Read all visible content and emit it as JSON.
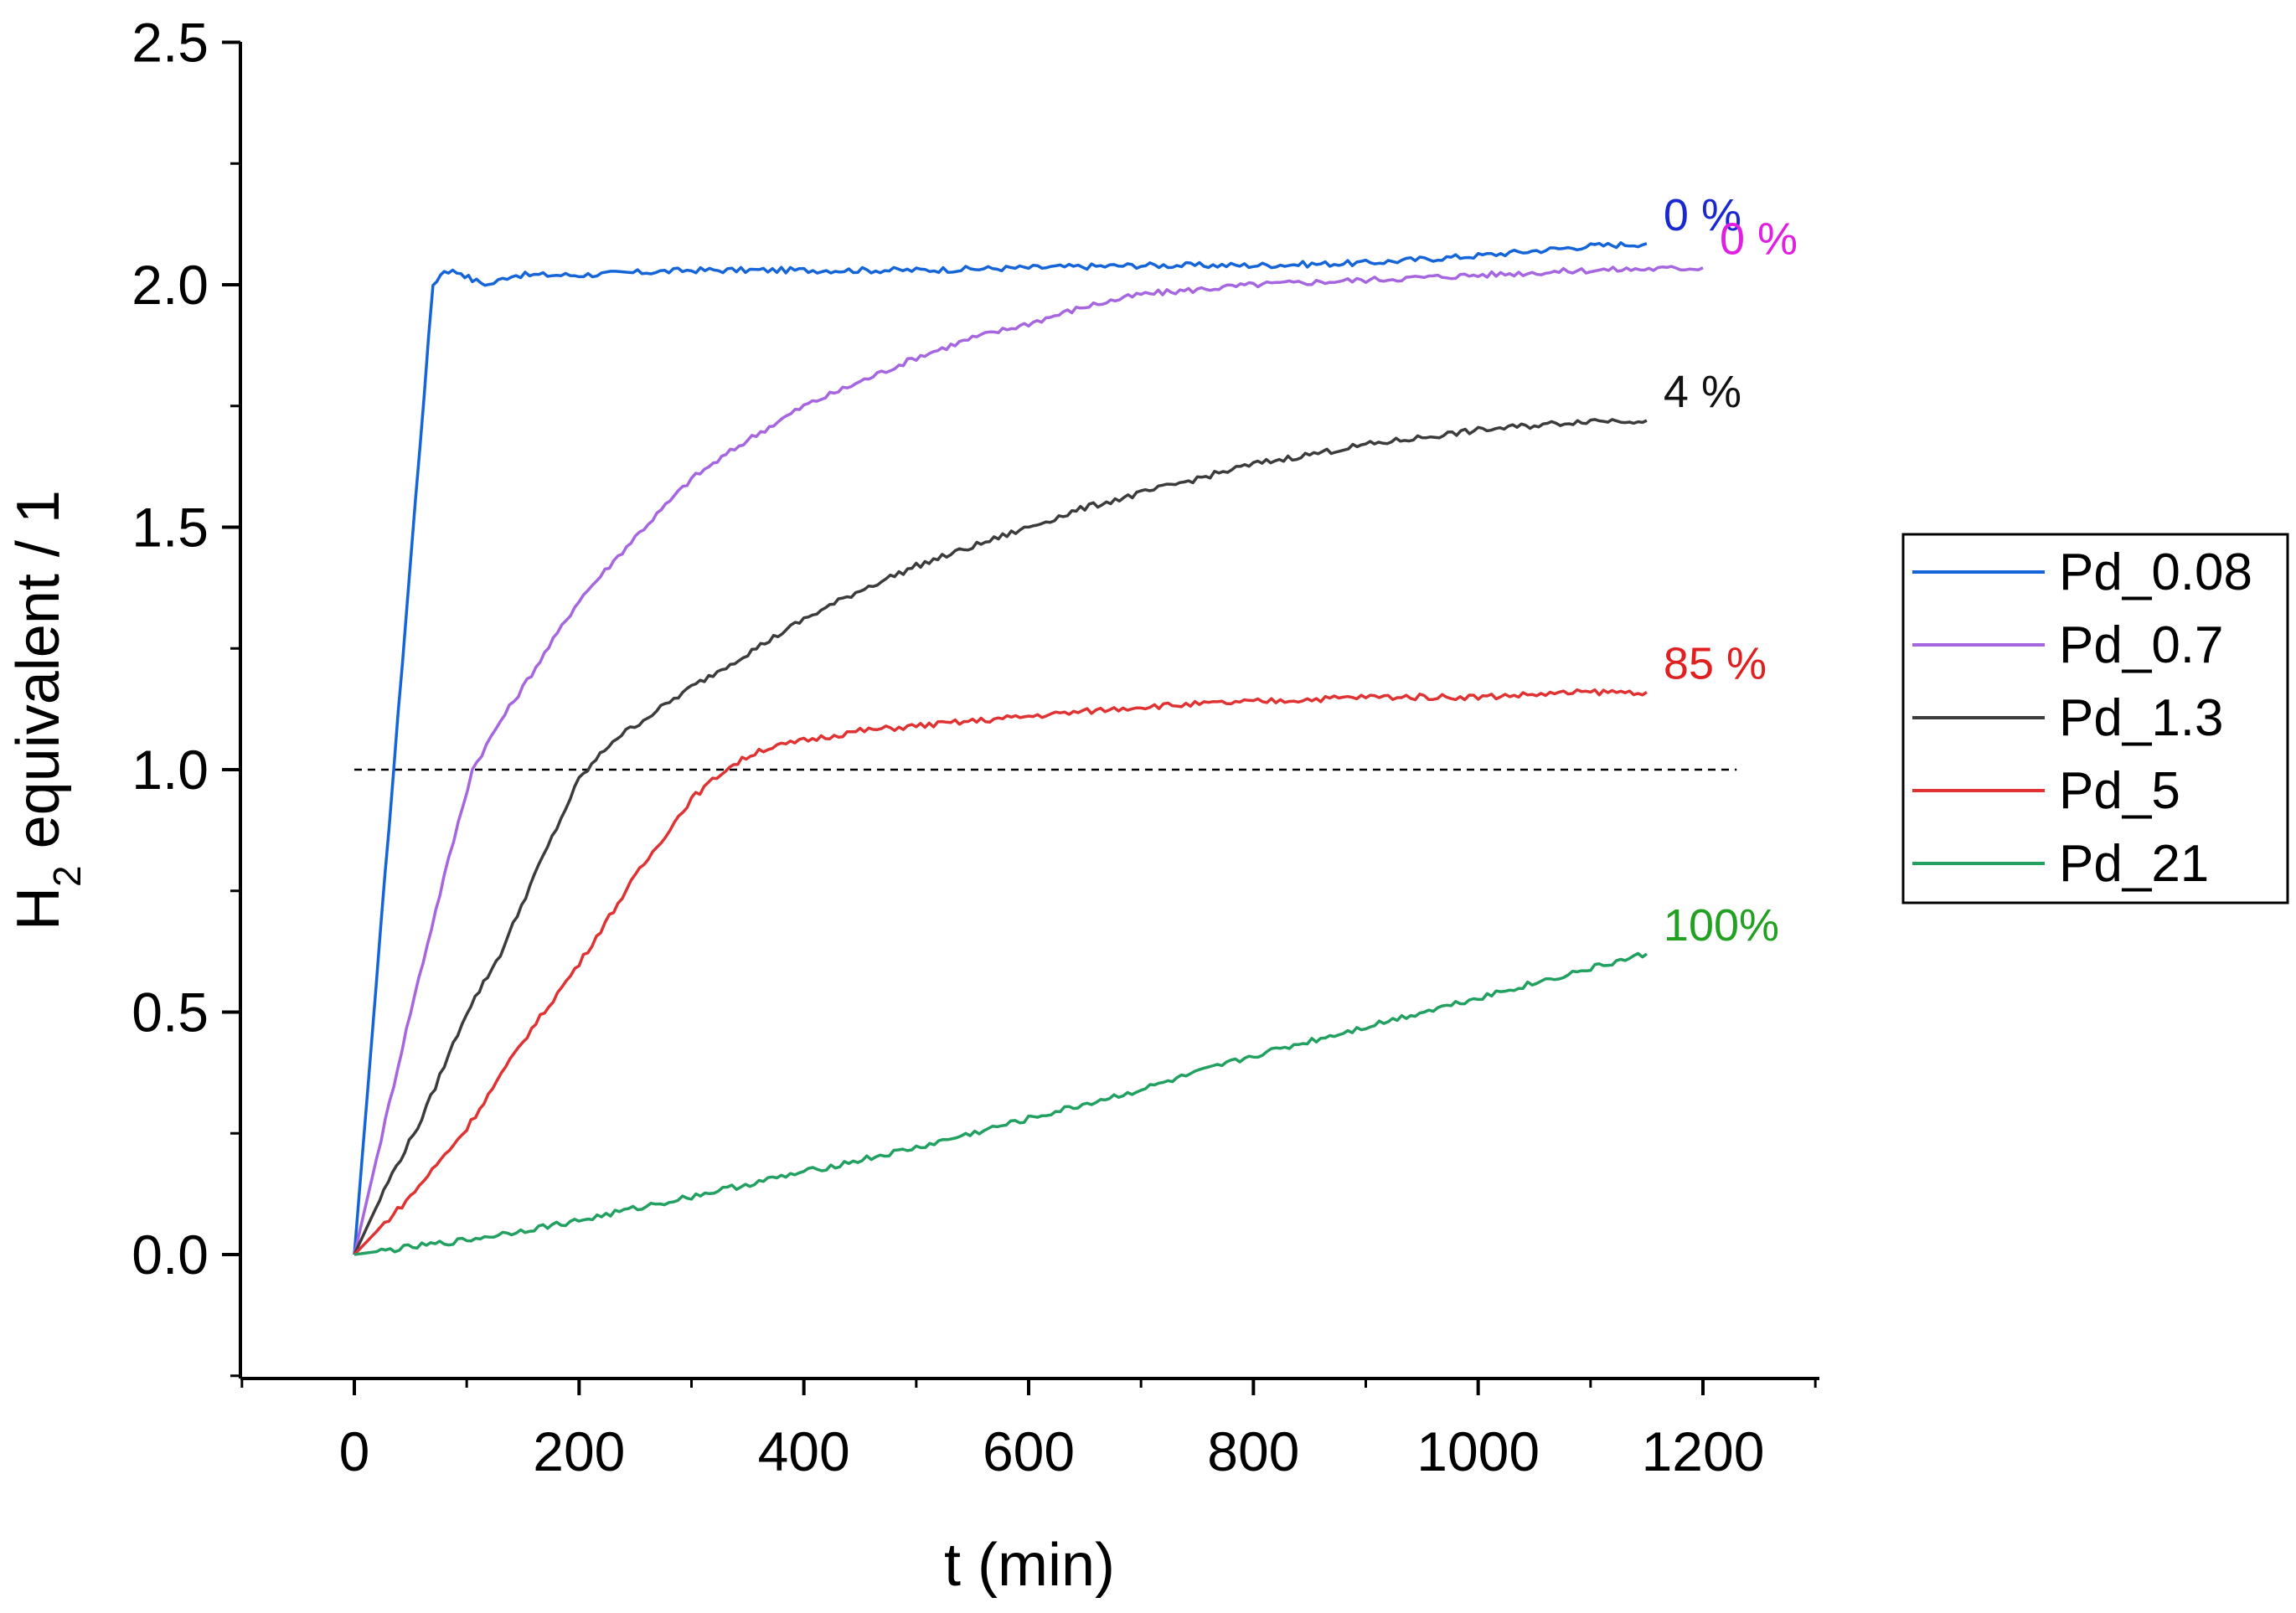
{
  "chart_data": {
    "type": "line",
    "title": "",
    "xlabel": "t (min)",
    "ylabel_main": "H",
    "ylabel_sub": "2",
    "ylabel_rest": " equivalent / 1",
    "xlim": [
      -100,
      1300
    ],
    "ylim": [
      -0.25,
      2.5
    ],
    "xticks": [
      0,
      200,
      400,
      600,
      800,
      1000,
      1200
    ],
    "xtick_labels": [
      "0",
      "200",
      "400",
      "600",
      "800",
      "1000",
      "1200"
    ],
    "yticks": [
      0,
      0.5,
      1.0,
      1.5,
      2.0,
      2.5
    ],
    "ytick_labels": [
      "0.0",
      "0.5",
      "1.0",
      "1.5",
      "2.0",
      "2.5"
    ],
    "reference_line": {
      "y": 1.0,
      "x_range": [
        0,
        1230
      ],
      "style": "dashed"
    },
    "legend_position": "right",
    "series": [
      {
        "name": "Pd_0.08",
        "color": "#1565d8",
        "annotation": "0 %",
        "annotation_color": "#1a28d0",
        "points": [
          [
            0,
            0
          ],
          [
            70,
            2.0
          ],
          [
            80,
            2.03
          ],
          [
            95,
            2.025
          ],
          [
            105,
            2.01
          ],
          [
            120,
            2.0
          ],
          [
            140,
            2.02
          ],
          [
            200,
            2.02
          ],
          [
            300,
            2.03
          ],
          [
            400,
            2.03
          ],
          [
            500,
            2.03
          ],
          [
            600,
            2.035
          ],
          [
            700,
            2.04
          ],
          [
            800,
            2.04
          ],
          [
            900,
            2.045
          ],
          [
            1000,
            2.06
          ],
          [
            1100,
            2.08
          ],
          [
            1150,
            2.085
          ]
        ]
      },
      {
        "name": "Pd_0.7",
        "color": "#a566e0",
        "annotation": "0 %",
        "annotation_color": "#e020e0",
        "points": [
          [
            0,
            0
          ],
          [
            20,
            0.2
          ],
          [
            50,
            0.5
          ],
          [
            80,
            0.78
          ],
          [
            105,
            1.0
          ],
          [
            130,
            1.1
          ],
          [
            150,
            1.17
          ],
          [
            200,
            1.35
          ],
          [
            250,
            1.48
          ],
          [
            300,
            1.6
          ],
          [
            350,
            1.68
          ],
          [
            400,
            1.75
          ],
          [
            450,
            1.8
          ],
          [
            500,
            1.85
          ],
          [
            550,
            1.89
          ],
          [
            600,
            1.92
          ],
          [
            650,
            1.955
          ],
          [
            700,
            1.98
          ],
          [
            750,
            1.99
          ],
          [
            800,
            2.0
          ],
          [
            900,
            2.01
          ],
          [
            1000,
            2.02
          ],
          [
            1100,
            2.03
          ],
          [
            1200,
            2.035
          ]
        ]
      },
      {
        "name": "Pd_1.3",
        "color": "#3c3c3c",
        "annotation": "4 %",
        "annotation_color": "#111111",
        "points": [
          [
            0,
            0
          ],
          [
            30,
            0.15
          ],
          [
            60,
            0.28
          ],
          [
            100,
            0.5
          ],
          [
            130,
            0.62
          ],
          [
            160,
            0.78
          ],
          [
            200,
            0.98
          ],
          [
            230,
            1.06
          ],
          [
            300,
            1.17
          ],
          [
            350,
            1.24
          ],
          [
            400,
            1.31
          ],
          [
            450,
            1.37
          ],
          [
            500,
            1.42
          ],
          [
            550,
            1.46
          ],
          [
            600,
            1.5
          ],
          [
            650,
            1.54
          ],
          [
            700,
            1.57
          ],
          [
            750,
            1.6
          ],
          [
            800,
            1.63
          ],
          [
            850,
            1.65
          ],
          [
            900,
            1.67
          ],
          [
            950,
            1.685
          ],
          [
            1000,
            1.7
          ],
          [
            1050,
            1.71
          ],
          [
            1100,
            1.72
          ],
          [
            1150,
            1.72
          ]
        ]
      },
      {
        "name": "Pd_5",
        "color": "#e03232",
        "annotation": "85 %",
        "annotation_color": "#e02020",
        "points": [
          [
            0,
            0
          ],
          [
            50,
            0.12
          ],
          [
            100,
            0.26
          ],
          [
            150,
            0.44
          ],
          [
            200,
            0.6
          ],
          [
            250,
            0.78
          ],
          [
            300,
            0.94
          ],
          [
            330,
            1.0
          ],
          [
            360,
            1.04
          ],
          [
            400,
            1.06
          ],
          [
            450,
            1.08
          ],
          [
            500,
            1.09
          ],
          [
            550,
            1.1
          ],
          [
            600,
            1.11
          ],
          [
            700,
            1.13
          ],
          [
            800,
            1.14
          ],
          [
            900,
            1.15
          ],
          [
            1000,
            1.15
          ],
          [
            1100,
            1.16
          ],
          [
            1150,
            1.16
          ]
        ]
      },
      {
        "name": "Pd_21",
        "color": "#21a060",
        "annotation": "100%",
        "annotation_color": "#21a021",
        "points": [
          [
            0,
            0
          ],
          [
            100,
            0.03
          ],
          [
            200,
            0.07
          ],
          [
            300,
            0.12
          ],
          [
            400,
            0.17
          ],
          [
            500,
            0.22
          ],
          [
            600,
            0.28
          ],
          [
            700,
            0.34
          ],
          [
            800,
            0.41
          ],
          [
            900,
            0.47
          ],
          [
            1000,
            0.53
          ],
          [
            1100,
            0.59
          ],
          [
            1150,
            0.62
          ]
        ]
      }
    ]
  }
}
